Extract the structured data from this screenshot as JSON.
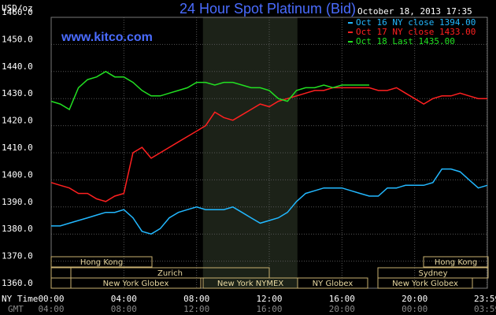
{
  "chart_data": {
    "type": "line",
    "title": "24 Hour Spot Platinum (Bid)",
    "date": "October 18, 2013 17:35",
    "y_label": "USD/oz",
    "watermark": "www.kitco.com",
    "x_label": "NY Time",
    "x2_label": "GMT",
    "x": [
      0,
      0.5,
      1,
      1.5,
      2,
      2.5,
      3,
      3.5,
      4,
      4.5,
      5,
      5.5,
      6,
      6.5,
      7,
      7.5,
      8,
      8.5,
      9,
      9.5,
      10,
      10.5,
      11,
      11.5,
      12,
      12.5,
      13,
      13.5,
      14,
      14.5,
      15,
      15.5,
      16,
      16.5,
      17,
      17.5,
      18,
      18.5,
      19,
      19.5,
      20,
      20.5,
      21,
      21.5,
      22,
      22.5,
      23,
      23.5,
      24
    ],
    "series": [
      {
        "name": "Oct 16 NY close 1394.00",
        "color": "#22b8ff",
        "values": [
          1383,
          1383,
          1384,
          1385,
          1386,
          1387,
          1388,
          1388,
          1389,
          1386,
          1381,
          1380,
          1382,
          1386,
          1388,
          1389,
          1390,
          1389,
          1389,
          1389,
          1390,
          1388,
          1386,
          1384,
          1385,
          1386,
          1388,
          1392,
          1395,
          1396,
          1397,
          1397,
          1397,
          1396,
          1395,
          1394,
          1394,
          1397,
          1397,
          1398,
          1398,
          1398,
          1399,
          1404,
          1404,
          1403,
          1400,
          1397,
          1398
        ]
      },
      {
        "name": "Oct 17 NY close 1433.00",
        "color": "#ff2020",
        "values": [
          1399,
          1398,
          1397,
          1395,
          1395,
          1393,
          1392,
          1394,
          1395,
          1410,
          1412,
          1408,
          1410,
          1412,
          1414,
          1416,
          1418,
          1420,
          1425,
          1423,
          1422,
          1424,
          1426,
          1428,
          1427,
          1429,
          1430,
          1431,
          1432,
          1433,
          1433,
          1434,
          1434,
          1434,
          1434,
          1434,
          1433,
          1433,
          1434,
          1432,
          1430,
          1428,
          1430,
          1431,
          1431,
          1432,
          1431,
          1430,
          1430
        ]
      },
      {
        "name": "Oct 18 Last 1435.00",
        "color": "#22e022",
        "values": [
          1429,
          1428,
          1426,
          1434,
          1437,
          1438,
          1440,
          1438,
          1438,
          1436,
          1433,
          1431,
          1431,
          1432,
          1433,
          1434,
          1436,
          1436,
          1435,
          1436,
          1436,
          1435,
          1434,
          1434,
          1433,
          1430,
          1429,
          1433,
          1434,
          1434,
          1435,
          1434,
          1435,
          1435,
          1435,
          1435,
          null,
          null,
          null,
          null,
          null,
          null,
          null,
          null,
          null,
          null,
          null,
          null,
          null
        ]
      }
    ],
    "xlim": [
      0,
      24
    ],
    "xticks": [
      {
        "value": 0,
        "label": "00:00"
      },
      {
        "value": 4,
        "label": "04:00"
      },
      {
        "value": 8,
        "label": "08:00"
      },
      {
        "value": 12,
        "label": "12:00"
      },
      {
        "value": 16,
        "label": "16:00"
      },
      {
        "value": 20,
        "label": "20:00"
      },
      {
        "value": 23.98,
        "label": "23:59"
      }
    ],
    "x2ticks": [
      {
        "value": 0,
        "label": "04:00"
      },
      {
        "value": 4,
        "label": "08:00"
      },
      {
        "value": 8,
        "label": "12:00"
      },
      {
        "value": 12,
        "label": "16:00"
      },
      {
        "value": 16,
        "label": "20:00"
      },
      {
        "value": 20,
        "label": "00:00"
      },
      {
        "value": 23.98,
        "label": "03:59"
      }
    ],
    "ylim": [
      1360,
      1460
    ],
    "yticks": [
      {
        "value": 1360,
        "label": "1360.0"
      },
      {
        "value": 1370,
        "label": "1370.0"
      },
      {
        "value": 1380,
        "label": "1380.0"
      },
      {
        "value": 1390,
        "label": "1390.0"
      },
      {
        "value": 1400,
        "label": "1400.0"
      },
      {
        "value": 1410,
        "label": "1410.0"
      },
      {
        "value": 1420,
        "label": "1420.0"
      },
      {
        "value": 1430,
        "label": "1430.0"
      },
      {
        "value": 1440,
        "label": "1440.0"
      },
      {
        "value": 1450,
        "label": "1450.0"
      },
      {
        "value": 1460,
        "label": "1460.0"
      }
    ],
    "grid": true,
    "highlight": [
      8.35,
      13.55
    ],
    "sessions": [
      "Hong Kong",
      "Hong Kong",
      "Zurich",
      "Sydney",
      "New York Globex",
      "New York NYMEX",
      "NY Globex",
      "New York Globex"
    ]
  }
}
